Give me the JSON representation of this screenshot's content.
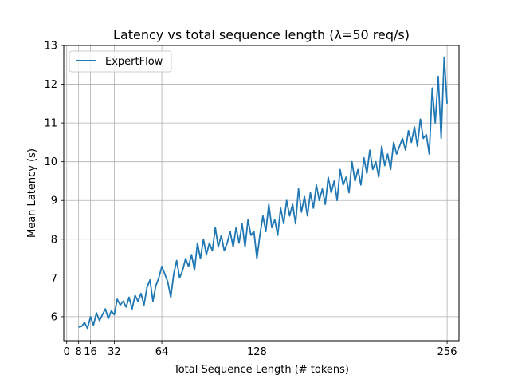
{
  "chart_data": {
    "type": "line",
    "title": "Latency vs total sequence length (λ=50 req/s)",
    "xlabel": "Total Sequence Length (# tokens)",
    "ylabel": "Mean Latency (s)",
    "xlim": [
      -2,
      264
    ],
    "ylim": [
      5.38,
      13.0
    ],
    "xticks": [
      0,
      8,
      16,
      32,
      64,
      128,
      256
    ],
    "yticks": [
      6,
      7,
      8,
      9,
      10,
      11,
      12,
      13
    ],
    "grid": true,
    "legend_position": "top-left",
    "series": [
      {
        "name": "ExpertFlow",
        "color": "#1f77b4",
        "x": [
          8,
          10,
          12,
          14,
          16,
          18,
          20,
          22,
          24,
          26,
          28,
          30,
          32,
          34,
          36,
          38,
          40,
          42,
          44,
          46,
          48,
          50,
          52,
          54,
          56,
          58,
          60,
          62,
          64,
          66,
          68,
          70,
          72,
          74,
          76,
          78,
          80,
          82,
          84,
          86,
          88,
          90,
          92,
          94,
          96,
          98,
          100,
          102,
          104,
          106,
          108,
          110,
          112,
          114,
          116,
          118,
          120,
          122,
          124,
          126,
          128,
          130,
          132,
          134,
          136,
          138,
          140,
          142,
          144,
          146,
          148,
          150,
          152,
          154,
          156,
          158,
          160,
          162,
          164,
          166,
          168,
          170,
          172,
          174,
          176,
          178,
          180,
          182,
          184,
          186,
          188,
          190,
          192,
          194,
          196,
          198,
          200,
          202,
          204,
          206,
          208,
          210,
          212,
          214,
          216,
          218,
          220,
          222,
          224,
          226,
          228,
          230,
          232,
          234,
          236,
          238,
          240,
          242,
          244,
          246,
          248,
          250,
          252,
          254,
          256
        ],
        "y": [
          5.73,
          5.75,
          5.85,
          5.7,
          6.0,
          5.78,
          6.1,
          5.9,
          6.05,
          6.2,
          5.95,
          6.15,
          6.05,
          6.45,
          6.3,
          6.4,
          6.25,
          6.5,
          6.2,
          6.55,
          6.4,
          6.6,
          6.3,
          6.75,
          6.95,
          6.4,
          6.8,
          7.0,
          7.3,
          7.1,
          6.9,
          6.5,
          7.1,
          7.45,
          7.0,
          7.2,
          7.5,
          7.3,
          7.6,
          7.2,
          7.9,
          7.5,
          8.0,
          7.6,
          7.9,
          7.7,
          8.3,
          7.8,
          8.1,
          7.7,
          7.9,
          8.2,
          7.8,
          8.3,
          7.9,
          8.4,
          7.8,
          8.5,
          8.1,
          8.2,
          7.5,
          8.1,
          8.6,
          8.2,
          8.9,
          8.3,
          8.5,
          8.1,
          8.8,
          8.4,
          9.0,
          8.6,
          8.9,
          8.4,
          9.3,
          8.7,
          9.1,
          8.6,
          9.2,
          8.8,
          9.4,
          9.0,
          9.3,
          8.9,
          9.6,
          9.2,
          9.5,
          9.0,
          9.8,
          9.4,
          9.6,
          9.2,
          10.0,
          9.5,
          9.8,
          9.4,
          10.1,
          9.7,
          10.3,
          9.8,
          10.0,
          9.6,
          10.4,
          9.9,
          10.2,
          9.8,
          10.5,
          10.2,
          10.4,
          10.6,
          10.3,
          10.8,
          10.5,
          10.9,
          10.4,
          11.1,
          10.6,
          10.7,
          10.2,
          11.9,
          11.0,
          12.2,
          10.6,
          12.7,
          11.5
        ]
      }
    ]
  }
}
